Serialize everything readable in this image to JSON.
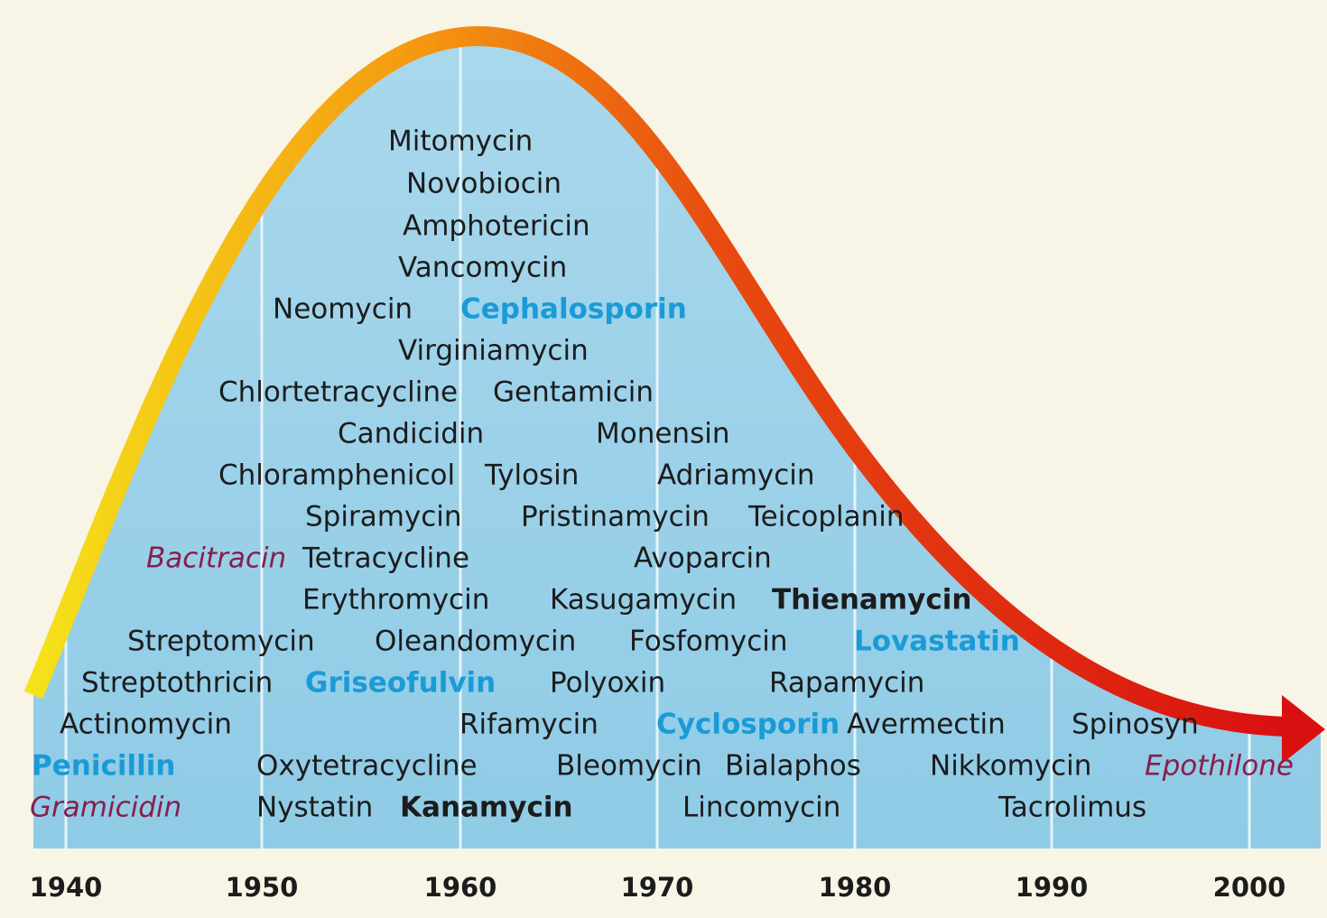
{
  "years": [
    "1940",
    "1950",
    "1960",
    "1970",
    "1980",
    "1990",
    "2000"
  ],
  "labels": [
    {
      "text": "Mitomycin"
    },
    {
      "text": "Novobiocin"
    },
    {
      "text": "Amphotericin"
    },
    {
      "text": "Vancomycin"
    },
    {
      "text": "Neomycin"
    },
    {
      "text": "Cephalosporin",
      "color": "#1a9bd7",
      "bold": true
    },
    {
      "text": "Virginiamycin"
    },
    {
      "text": "Chlortetracycline"
    },
    {
      "text": "Gentamicin"
    },
    {
      "text": "Candicidin"
    },
    {
      "text": "Monensin"
    },
    {
      "text": "Chloramphenicol"
    },
    {
      "text": "Tylosin"
    },
    {
      "text": "Adriamycin"
    },
    {
      "text": "Spiramycin"
    },
    {
      "text": "Pristinamycin"
    },
    {
      "text": "Teicoplanin"
    },
    {
      "text": "Bacitracin",
      "color": "#8a1d4a",
      "italic": true
    },
    {
      "text": "Tetracycline"
    },
    {
      "text": "Avoparcin"
    },
    {
      "text": "Erythromycin"
    },
    {
      "text": "Kasugamycin"
    },
    {
      "text": "Thienamycin",
      "bold": true
    },
    {
      "text": "Streptomycin"
    },
    {
      "text": "Oleandomycin"
    },
    {
      "text": "Fosfomycin"
    },
    {
      "text": "Lovastatin",
      "color": "#1a9bd7",
      "bold": true
    },
    {
      "text": "Streptothricin"
    },
    {
      "text": "Griseofulvin",
      "color": "#1a9bd7",
      "bold": true
    },
    {
      "text": "Polyoxin"
    },
    {
      "text": "Rapamycin"
    },
    {
      "text": "Actinomycin"
    },
    {
      "text": "Rifamycin"
    },
    {
      "text": "Cyclosporin",
      "color": "#1a9bd7",
      "bold": true
    },
    {
      "text": "Avermectin"
    },
    {
      "text": "Spinosyn"
    },
    {
      "text": "Penicillin",
      "color": "#1a9bd7",
      "bold": true
    },
    {
      "text": "Oxytetracycline"
    },
    {
      "text": "Bleomycin"
    },
    {
      "text": "Bialaphos"
    },
    {
      "text": "Nikkomycin"
    },
    {
      "text": "Epothilone",
      "color": "#8a1d4a",
      "italic": true
    },
    {
      "text": "Gramicidin",
      "color": "#8a1d4a",
      "italic": true
    },
    {
      "text": "Nystatin"
    },
    {
      "text": "Kanamycin",
      "bold": true
    },
    {
      "text": "Lincomycin"
    },
    {
      "text": "Tacrolimus"
    }
  ]
}
